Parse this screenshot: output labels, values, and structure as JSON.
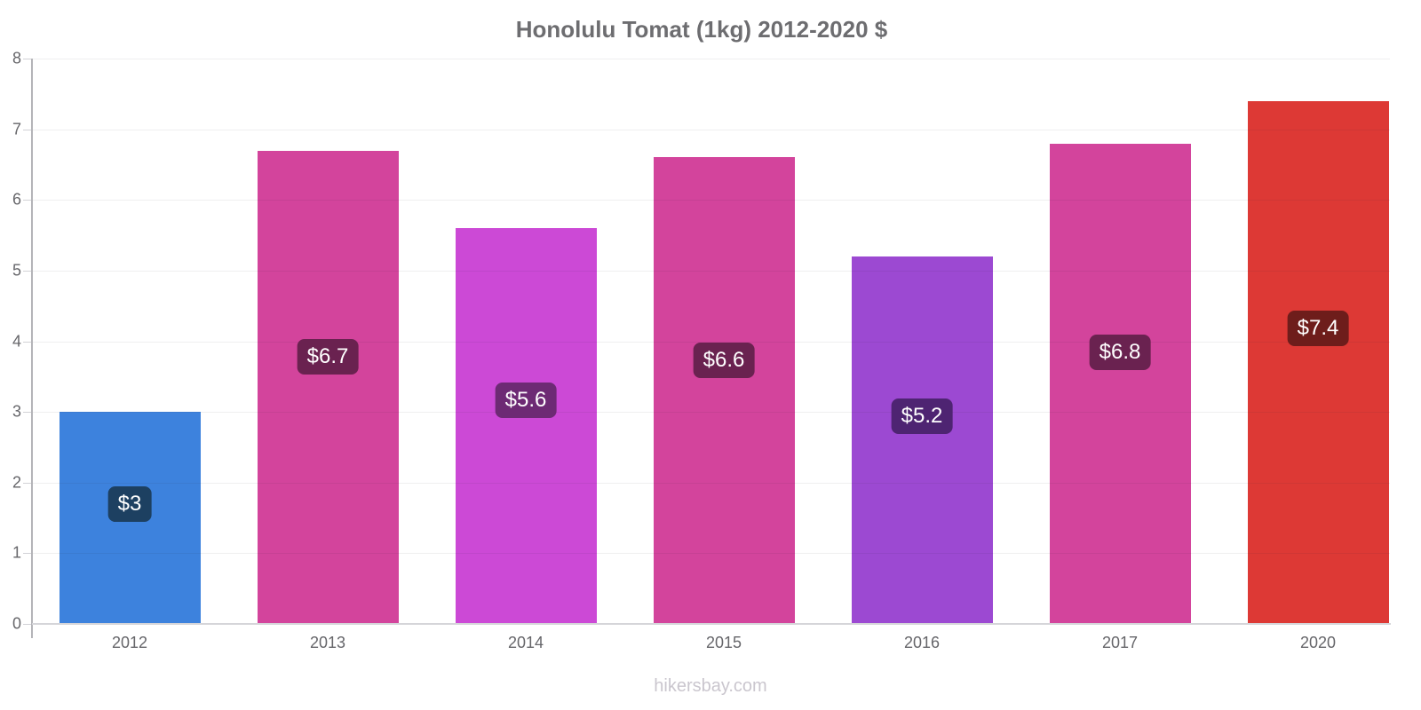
{
  "chart_data": {
    "type": "bar",
    "title": "Honolulu Tomat (1kg) 2012-2020 $",
    "categories": [
      "2012",
      "2013",
      "2014",
      "2015",
      "2016",
      "2017",
      "2020"
    ],
    "values": [
      3,
      6.7,
      5.6,
      6.6,
      5.2,
      6.8,
      7.4
    ],
    "display_labels": [
      "$3",
      "$6.7",
      "$5.6",
      "$6.6",
      "$5.2",
      "$6.8",
      "$7.4"
    ],
    "bar_colors": [
      "#3d82dd",
      "#d3449c",
      "#cc49d6",
      "#d3449c",
      "#9c49d2",
      "#d3449c",
      "#dd3935"
    ],
    "label_bg_colors": [
      "#1d4061",
      "#6a2250",
      "#6d2a74",
      "#6a2250",
      "#4e2472",
      "#6a2250",
      "#6e1d1b"
    ],
    "label_text_color": "#ffffff",
    "xlabel": "",
    "ylabel": "",
    "ylim": [
      0,
      8
    ],
    "yticks": [
      0,
      1,
      2,
      3,
      4,
      5,
      6,
      7,
      8
    ],
    "grid": true,
    "legend": "none",
    "currency": "$"
  },
  "footer": {
    "text": "hikersbay.com"
  },
  "colors": {
    "title_text": "#6d6d70",
    "axis_tick_text": "#66666a",
    "axis_line": "#b4b4b8",
    "baseline": "#d5d5d9",
    "watermark_text": "#cac6ce",
    "background": "#ffffff"
  }
}
